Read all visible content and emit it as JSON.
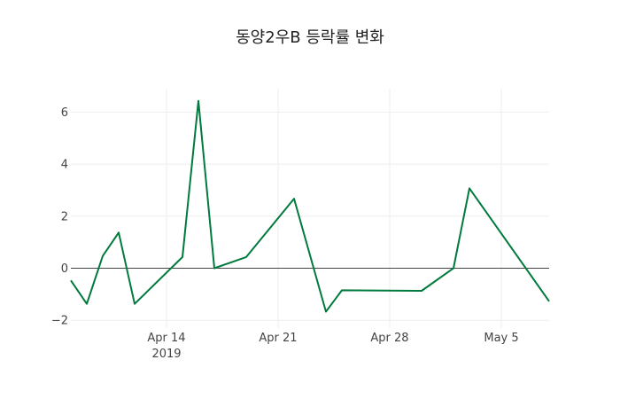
{
  "chart_data": {
    "type": "line",
    "title": "동양2우B 등락률 변화",
    "xlabel": "",
    "ylabel": "",
    "x": [
      "2019-04-08",
      "2019-04-09",
      "2019-04-10",
      "2019-04-11",
      "2019-04-12",
      "2019-04-15",
      "2019-04-16",
      "2019-04-17",
      "2019-04-19",
      "2019-04-22",
      "2019-04-24",
      "2019-04-25",
      "2019-04-30",
      "2019-05-02",
      "2019-05-03",
      "2019-05-08"
    ],
    "series": [
      {
        "name": "등락률",
        "color": "#007a3d",
        "values": [
          -0.47,
          -1.37,
          0.47,
          1.37,
          -1.37,
          0.43,
          6.43,
          0.0,
          0.43,
          2.67,
          -1.67,
          -0.85,
          -0.87,
          0.0,
          3.07,
          -1.27
        ]
      }
    ],
    "xlim": [
      "2019-04-08",
      "2019-05-08"
    ],
    "ylim": [
      -2.3,
      6.9
    ],
    "x_ticks": [
      {
        "date": "2019-04-14",
        "label": "Apr 14",
        "sublabel": "2019"
      },
      {
        "date": "2019-04-21",
        "label": "Apr 21"
      },
      {
        "date": "2019-04-28",
        "label": "Apr 28"
      },
      {
        "date": "2019-05-05",
        "label": "May 5"
      }
    ],
    "y_ticks": [
      -2,
      0,
      2,
      4,
      6
    ],
    "y_tick_labels": [
      "−2",
      "0",
      "2",
      "4",
      "6"
    ],
    "grid": true,
    "legend": "none"
  }
}
